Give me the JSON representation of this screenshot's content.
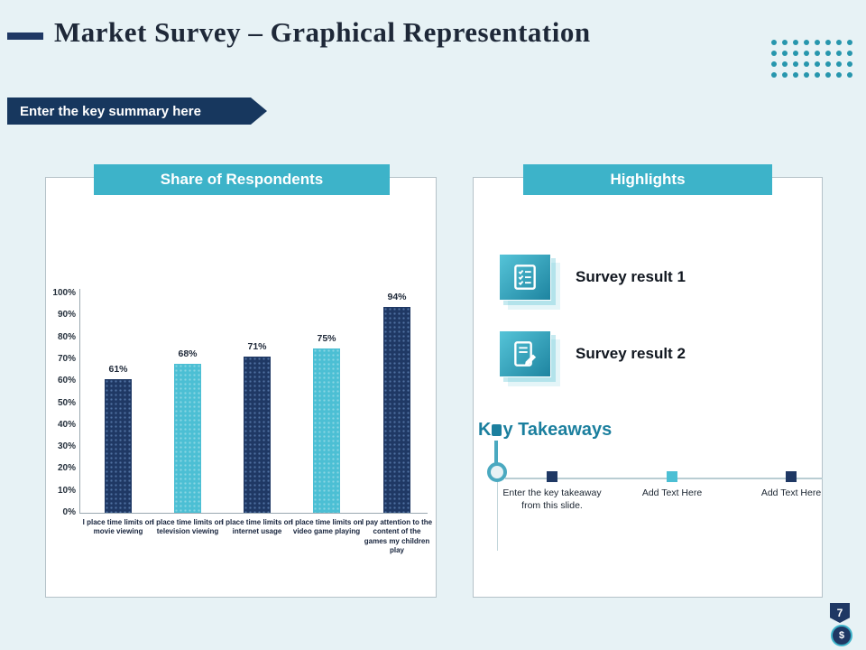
{
  "header": {
    "title": "Market Survey – Graphical Representation",
    "banner": "Enter the key summary here"
  },
  "chart_panel": {
    "header": "Share of Respondents"
  },
  "chart_data": {
    "type": "bar",
    "title": "Share of Respondents",
    "categories": [
      "I place time limits on movie viewing",
      "I place time limits on television viewing",
      "I place time limits on internet usage",
      "I place time limits on video game playing",
      "I pay attention to the content of the games my children play"
    ],
    "values": [
      61,
      68,
      71,
      75,
      94
    ],
    "value_labels": [
      "61%",
      "68%",
      "71%",
      "75%",
      "94%"
    ],
    "xlabel": "",
    "ylabel": "",
    "ylim": [
      0,
      100
    ],
    "yticks": [
      "0%",
      "10%",
      "20%",
      "30%",
      "40%",
      "50%",
      "60%",
      "70%",
      "80%",
      "90%",
      "100%"
    ],
    "bar_colors": [
      "#1f3864",
      "#4cbfd4",
      "#1f3864",
      "#4cbfd4",
      "#1f3864"
    ],
    "grid": false,
    "legend": false
  },
  "highlights": {
    "header": "Highlights",
    "items": [
      {
        "label": "Survey result 1",
        "icon": "checklist-icon"
      },
      {
        "label": "Survey result 2",
        "icon": "document-pen-icon"
      }
    ]
  },
  "takeaways": {
    "title_k": "K",
    "title_rest": "y Takeaways",
    "items": [
      {
        "text": "Enter the key takeaway from this slide.",
        "color": "#1f3864"
      },
      {
        "text": "Add Text Here",
        "color": "#4cbfd4"
      },
      {
        "text": "Add Text Here",
        "color": "#1f3864"
      }
    ]
  },
  "footer": {
    "page_number": "7",
    "currency_symbol": "$"
  },
  "colors": {
    "background": "#e7f2f5",
    "navy": "#1f3864",
    "teal_header": "#3db3c9",
    "teal_light": "#4cbfd4",
    "banner_navy": "#17375e",
    "takeaway_teal": "#1b7f9e"
  }
}
